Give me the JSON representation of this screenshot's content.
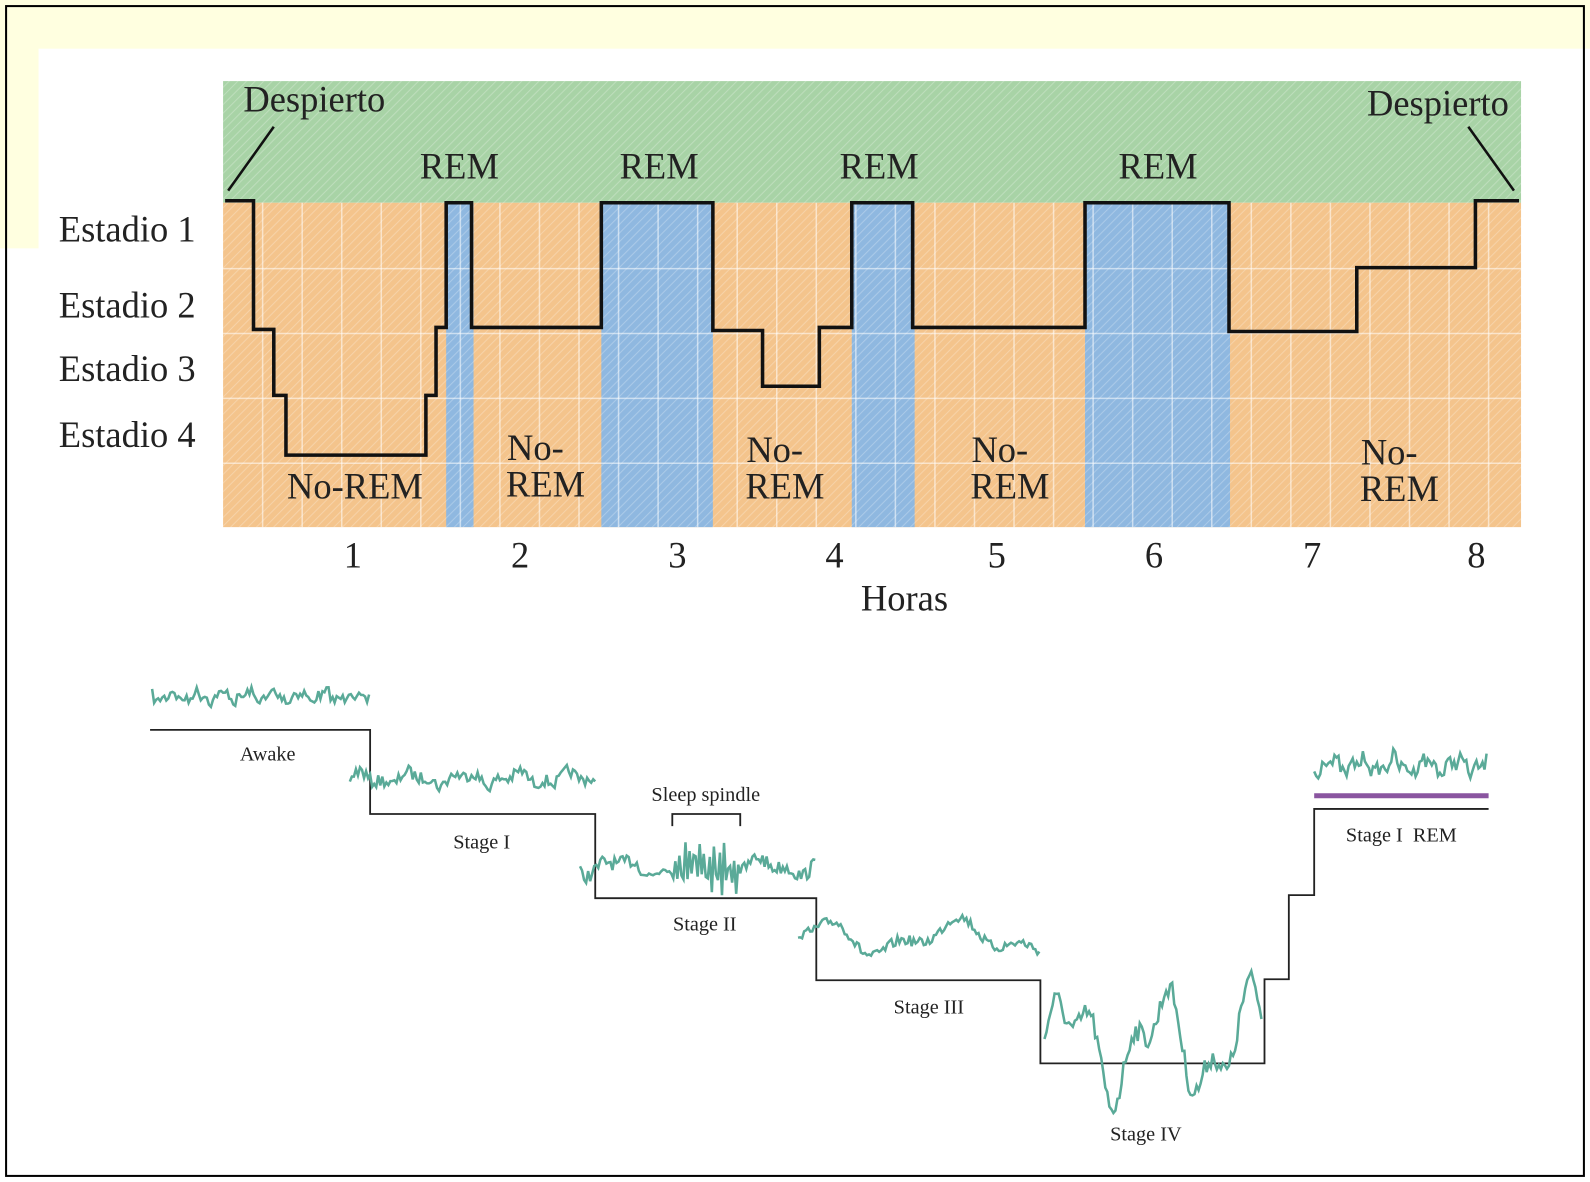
{
  "hypnogram": {
    "wake_labels": [
      "Despierto",
      "Despierto"
    ],
    "stage_labels": [
      "Estadio 1",
      "Estadio 2",
      "Estadio 3",
      "Estadio 4"
    ],
    "rem_labels": [
      "REM",
      "REM",
      "REM",
      "REM"
    ],
    "nonrem_labels": [
      [
        "No-REM"
      ],
      [
        "No-",
        "REM"
      ],
      [
        "No-",
        "REM"
      ],
      [
        "No-",
        "REM"
      ],
      [
        "No-",
        "REM"
      ]
    ],
    "hours": [
      "1",
      "2",
      "3",
      "4",
      "5",
      "6",
      "7",
      "8"
    ],
    "x_label": "Horas"
  },
  "eeg": {
    "stages": [
      "Awake",
      "Stage I",
      "Stage II",
      "Stage III",
      "Stage IV",
      "Stage I  REM"
    ],
    "annotation": "Sleep spindle"
  }
}
